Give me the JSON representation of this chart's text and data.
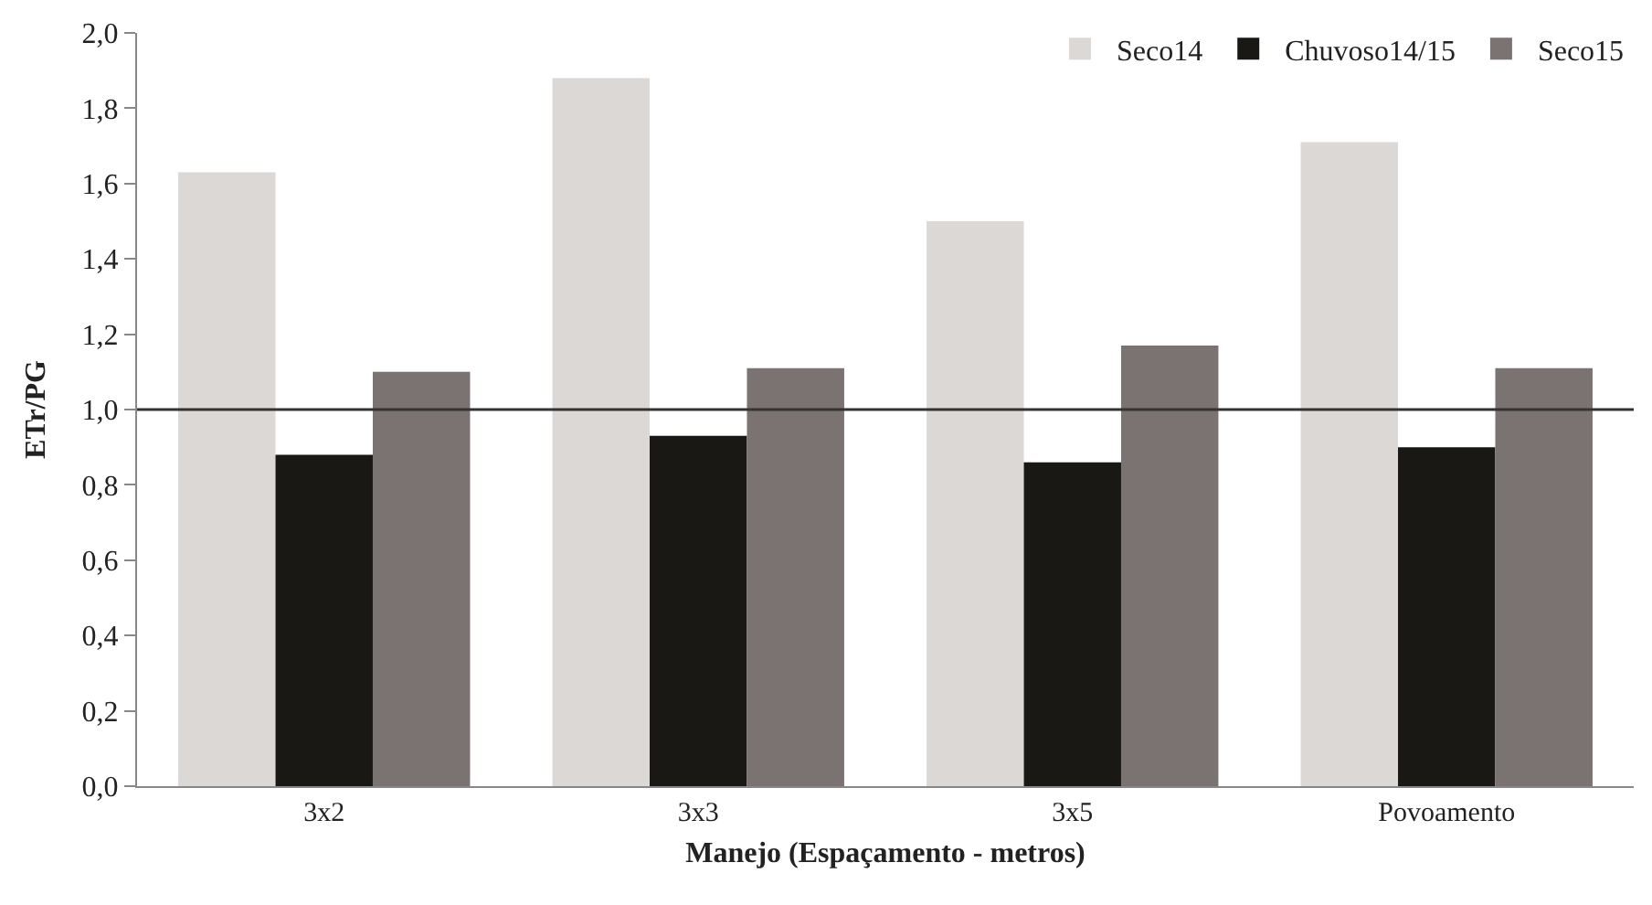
{
  "chart_data": {
    "type": "bar",
    "xlabel": "Manejo (Espaçamento - metros)",
    "ylabel": "ETr/PG",
    "categories": [
      "3x2",
      "3x3",
      "3x5",
      "Povoamento"
    ],
    "series": [
      {
        "name": "Seco14",
        "color": "#dcd8d6",
        "values": [
          1.63,
          1.88,
          1.5,
          1.71
        ]
      },
      {
        "name": "Chuvoso14/15",
        "color": "#1a1815",
        "values": [
          0.88,
          0.93,
          0.86,
          0.9
        ]
      },
      {
        "name": "Seco15",
        "color": "#7a7371",
        "values": [
          1.1,
          1.11,
          1.17,
          1.11
        ]
      }
    ],
    "ylim": [
      0,
      2.0
    ],
    "yticks": [
      {
        "value": 0,
        "label": "0,0"
      },
      {
        "value": 0.2,
        "label": "0,2"
      },
      {
        "value": 0.4,
        "label": "0,4"
      },
      {
        "value": 0.6,
        "label": "0,6"
      },
      {
        "value": 0.8,
        "label": "0,8"
      },
      {
        "value": 1.0,
        "label": "1,0"
      },
      {
        "value": 1.2,
        "label": "1,2"
      },
      {
        "value": 1.4,
        "label": "1,4"
      },
      {
        "value": 1.6,
        "label": "1,6"
      },
      {
        "value": 1.8,
        "label": "1,8"
      },
      {
        "value": 2.0,
        "label": "2,0"
      }
    ],
    "ref_lines": [
      {
        "axis": "y",
        "value": 1.0,
        "color": "#333333"
      }
    ],
    "legend": "top right"
  }
}
